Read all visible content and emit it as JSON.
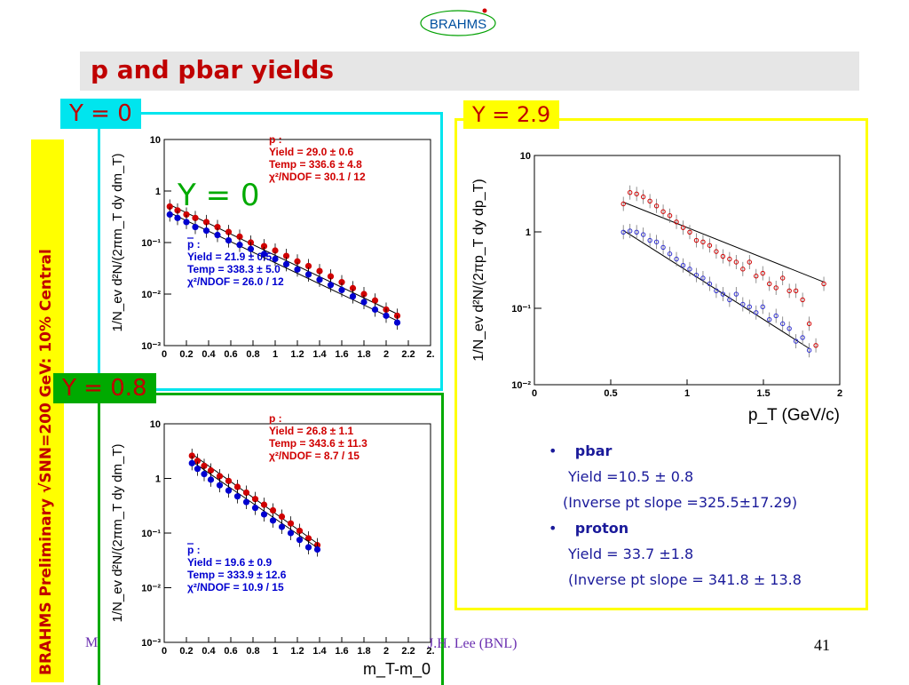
{
  "logo": {
    "text": "BRAHMS"
  },
  "title": "p and pbar yields",
  "side_label": "BRAHMS Preliminary   √SNN=200 GeV: 10% Central",
  "tags": {
    "y0": "Y = 0",
    "y08": "Y = 0.8",
    "y29": "Y = 2.9",
    "overlay": "Y = 0"
  },
  "footer": {
    "left": "M",
    "author": "J.H. Lee (BNL)",
    "page": "41"
  },
  "notes": {
    "bullet": "•",
    "pbar_head": "pbar",
    "pbar_yield": "Yield =10.5 ± 0.8",
    "pbar_slope": "(Inverse pt slope =325.5±17.29)",
    "proton_head": "proton",
    "proton_yield": "Yield = 33.7 ±1.8",
    "proton_slope": "(Inverse pt slope = 341.8 ± 13.8"
  },
  "colors": {
    "proton": "#d00000",
    "pbar": "#0000d0",
    "pt_proton": "#d00000",
    "pt_pbar": "#3030d0"
  },
  "chart_data": [
    {
      "type": "scatter",
      "panel": "y0",
      "ylabel": "1/N_ev d²N/(2πm_T dy dm_T)",
      "log_y": true,
      "ylim": [
        0.001,
        10
      ],
      "xlim": [
        0,
        2.4
      ],
      "x_ticks": [
        "0",
        "0.2",
        "0.4",
        "0.6",
        "0.8",
        "1",
        "1.2",
        "1.4",
        "1.6",
        "1.8",
        "2",
        "2.2",
        "2."
      ],
      "y_ticks": [
        "10⁻³",
        "10⁻²",
        "10⁻¹",
        "1",
        "10"
      ],
      "annotations": {
        "p": [
          "p :",
          "Yield = 29.0  ± 0.6",
          "Temp = 336.6  ± 4.8",
          "χ²/NDOF = 30.1 / 12"
        ],
        "pbar": [
          "p :",
          "Yield = 21.9  ± 0.5",
          "Temp = 338.3  ± 5.0",
          "χ²/NDOF = 26.0 / 12"
        ]
      },
      "series": [
        {
          "name": "p",
          "x": [
            0.05,
            0.12,
            0.2,
            0.28,
            0.38,
            0.48,
            0.58,
            0.68,
            0.78,
            0.9,
            1.0,
            1.1,
            1.2,
            1.3,
            1.4,
            1.5,
            1.6,
            1.7,
            1.8,
            1.9,
            2.0,
            2.1
          ],
          "y": [
            0.5,
            0.42,
            0.35,
            0.3,
            0.25,
            0.2,
            0.16,
            0.13,
            0.1,
            0.085,
            0.07,
            0.055,
            0.043,
            0.035,
            0.028,
            0.022,
            0.017,
            0.013,
            0.01,
            0.0075,
            0.005,
            0.0038
          ]
        },
        {
          "name": "pbar",
          "x": [
            0.05,
            0.12,
            0.2,
            0.28,
            0.38,
            0.48,
            0.58,
            0.68,
            0.78,
            0.9,
            1.0,
            1.1,
            1.2,
            1.3,
            1.4,
            1.5,
            1.6,
            1.7,
            1.8,
            1.9,
            2.0,
            2.1
          ],
          "y": [
            0.35,
            0.3,
            0.25,
            0.2,
            0.17,
            0.14,
            0.11,
            0.09,
            0.075,
            0.06,
            0.048,
            0.038,
            0.03,
            0.024,
            0.019,
            0.015,
            0.012,
            0.009,
            0.007,
            0.005,
            0.0038,
            0.0028
          ]
        }
      ]
    },
    {
      "type": "scatter",
      "panel": "y08",
      "ylabel": "1/N_ev d²N/(2πm_T dy dm_T)",
      "xlabel": "m_T-m_0",
      "log_y": true,
      "ylim": [
        0.001,
        10
      ],
      "xlim": [
        0,
        2.4
      ],
      "x_ticks": [
        "0",
        "0.2",
        "0.4",
        "0.6",
        "0.8",
        "1",
        "1.2",
        "1.4",
        "1.6",
        "1.8",
        "2",
        "2.2",
        "2."
      ],
      "y_ticks": [
        "10⁻³",
        "10⁻²",
        "10⁻¹",
        "1",
        "10"
      ],
      "annotations": {
        "p": [
          "p :",
          "Yield = 26.8  ± 1.1",
          "Temp = 343.6  ± 11.3",
          "χ²/NDOF = 8.7 / 15"
        ],
        "pbar": [
          "p :",
          "Yield = 19.6  ± 0.9",
          "Temp = 333.9  ± 12.6",
          "χ²/NDOF = 10.9 / 15"
        ]
      },
      "series": [
        {
          "name": "p",
          "x": [
            0.25,
            0.3,
            0.36,
            0.42,
            0.5,
            0.58,
            0.66,
            0.74,
            0.82,
            0.9,
            0.98,
            1.06,
            1.14,
            1.22,
            1.3,
            1.38
          ],
          "y": [
            2.6,
            2.1,
            1.7,
            1.4,
            1.1,
            0.9,
            0.7,
            0.55,
            0.42,
            0.33,
            0.26,
            0.2,
            0.15,
            0.11,
            0.08,
            0.06
          ]
        },
        {
          "name": "pbar",
          "x": [
            0.25,
            0.3,
            0.36,
            0.42,
            0.5,
            0.58,
            0.66,
            0.74,
            0.82,
            0.9,
            0.98,
            1.06,
            1.14,
            1.22,
            1.3,
            1.38
          ],
          "y": [
            1.9,
            1.5,
            1.2,
            0.95,
            0.75,
            0.6,
            0.47,
            0.37,
            0.29,
            0.22,
            0.17,
            0.13,
            0.1,
            0.075,
            0.055,
            0.05
          ]
        }
      ]
    },
    {
      "type": "scatter",
      "panel": "y29",
      "ylabel": "1/N_ev d²N/(2πp_T dy dp_T)",
      "xlabel": "p_T (GeV/c)",
      "log_y": true,
      "ylim": [
        0.01,
        15
      ],
      "xlim": [
        0,
        2.3
      ],
      "x_ticks": [
        "0",
        "0.5",
        "1",
        "1.5",
        "2"
      ],
      "y_ticks": [
        "10⁻²",
        "10⁻¹",
        "1",
        "10"
      ],
      "series": [
        {
          "name": "proton",
          "x": [
            0.67,
            0.72,
            0.77,
            0.82,
            0.87,
            0.92,
            0.97,
            1.02,
            1.07,
            1.12,
            1.17,
            1.22,
            1.27,
            1.32,
            1.37,
            1.42,
            1.47,
            1.52,
            1.57,
            1.62,
            1.67,
            1.72,
            1.77,
            1.82,
            1.87,
            1.92,
            1.97,
            2.02,
            2.07,
            2.12,
            2.18
          ],
          "y": [
            3.2,
            4.6,
            4.4,
            4.0,
            3.5,
            3.0,
            2.5,
            2.2,
            1.8,
            1.5,
            1.3,
            1.0,
            0.95,
            0.85,
            0.7,
            0.6,
            0.55,
            0.5,
            0.4,
            0.5,
            0.32,
            0.35,
            0.25,
            0.22,
            0.3,
            0.2,
            0.2,
            0.15,
            0.07,
            0.035,
            0.25
          ]
        },
        {
          "name": "pbar",
          "x": [
            0.67,
            0.72,
            0.77,
            0.82,
            0.87,
            0.92,
            0.97,
            1.02,
            1.07,
            1.12,
            1.17,
            1.22,
            1.27,
            1.32,
            1.37,
            1.42,
            1.47,
            1.52,
            1.57,
            1.62,
            1.67,
            1.72,
            1.77,
            1.82,
            1.87,
            1.92,
            1.97,
            2.02,
            2.07
          ],
          "y": [
            1.3,
            1.35,
            1.3,
            1.2,
            1.0,
            0.95,
            0.8,
            0.65,
            0.55,
            0.45,
            0.4,
            0.33,
            0.3,
            0.25,
            0.2,
            0.18,
            0.15,
            0.18,
            0.13,
            0.12,
            0.1,
            0.12,
            0.08,
            0.09,
            0.07,
            0.06,
            0.04,
            0.045,
            0.03
          ]
        }
      ]
    }
  ]
}
